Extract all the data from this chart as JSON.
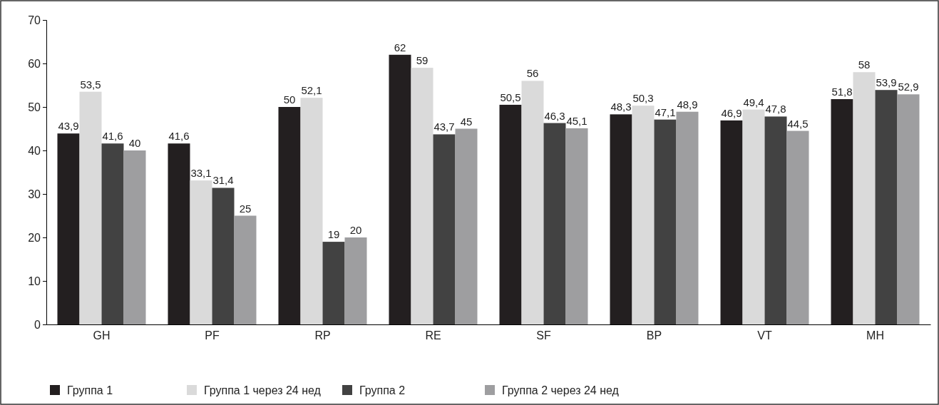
{
  "chart_data": {
    "type": "bar",
    "categories": [
      "GH",
      "PF",
      "RP",
      "RE",
      "SF",
      "BP",
      "VT",
      "MH"
    ],
    "ylim": [
      0,
      70
    ],
    "yticks": [
      0,
      10,
      20,
      30,
      40,
      50,
      60,
      70
    ],
    "grid": false,
    "legend": "bottom",
    "series": [
      {
        "name": "Группа 1",
        "color": "#231f20",
        "values": [
          43.9,
          41.6,
          50,
          62,
          50.5,
          48.3,
          46.9,
          51.8
        ],
        "value_labels": [
          "43,9",
          "41,6",
          "50",
          "62",
          "50,5",
          "48,3",
          "46,9",
          "51,8"
        ]
      },
      {
        "name": "Группа 1 через 24 нед",
        "color": "#dadada",
        "values": [
          53.5,
          33.1,
          52.1,
          59,
          56,
          50.3,
          49.4,
          58
        ],
        "value_labels": [
          "53,5",
          "33,1",
          "52,1",
          "59",
          "56",
          "50,3",
          "49,4",
          "58"
        ]
      },
      {
        "name": "Группа 2",
        "color": "#424242",
        "values": [
          41.6,
          31.4,
          19,
          43.7,
          46.3,
          47.1,
          47.8,
          53.9
        ],
        "value_labels": [
          "41,6",
          "31,4",
          "19",
          "43,7",
          "46,3",
          "47,1",
          "47,8",
          "53,9"
        ]
      },
      {
        "name": "Группа 2 через 24 нед",
        "color": "#9e9ea0",
        "values": [
          40,
          25,
          20,
          45,
          45.1,
          48.9,
          44.5,
          52.9
        ],
        "value_labels": [
          "40",
          "25",
          "20",
          "45",
          "45,1",
          "48,9",
          "44,5",
          "52,9"
        ]
      }
    ]
  }
}
